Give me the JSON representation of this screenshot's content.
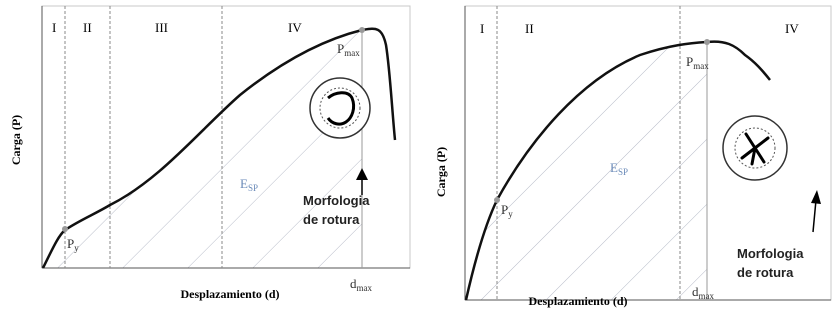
{
  "panels": [
    {
      "regions": [
        "I",
        "II",
        "III",
        "IV"
      ],
      "y_label": "Carga (P)",
      "x_label": "Desplazamiento (d)",
      "p_max": {
        "base": "P",
        "sub": "max"
      },
      "p_y": {
        "base": "P",
        "sub": "y"
      },
      "energy": {
        "base": "E",
        "sub": "SP"
      },
      "d_max": {
        "base": "d",
        "sub": "max"
      },
      "morphology": [
        "Morfologia",
        "de rotura"
      ]
    },
    {
      "regions": [
        "I",
        "II",
        "IV"
      ],
      "y_label": "Carga (P)",
      "x_label": "Desplazamiento (d)",
      "p_max": {
        "base": "P",
        "sub": "max"
      },
      "p_y": {
        "base": "P",
        "sub": "y"
      },
      "energy": {
        "base": "E",
        "sub": "SP"
      },
      "d_max": {
        "base": "d",
        "sub": "max"
      },
      "morphology": [
        "Morfologia",
        "de rotura"
      ]
    }
  ]
}
